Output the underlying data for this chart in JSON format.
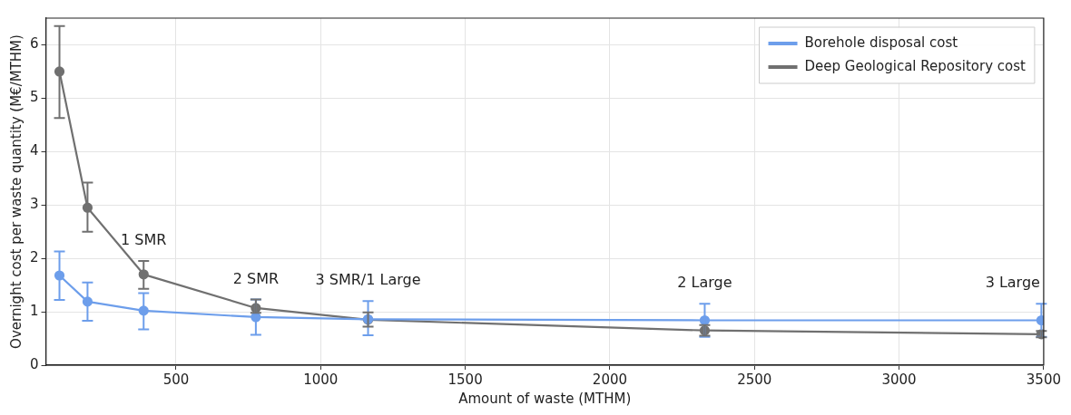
{
  "chart_data": {
    "type": "line",
    "xlabel": "Amount of waste (MTHM)",
    "ylabel": "Overnight cost per waste quantity (M€/MTHM)",
    "x": [
      97,
      194,
      388,
      776,
      1164,
      2328,
      3492
    ],
    "series": [
      {
        "name": "Borehole disposal cost",
        "color": "#6d9eeb",
        "values": [
          1.68,
          1.19,
          1.02,
          0.9,
          0.86,
          0.84,
          0.84
        ],
        "errors": [
          [
            1.22,
            2.13
          ],
          [
            0.83,
            1.55
          ],
          [
            0.67,
            1.35
          ],
          [
            0.57,
            1.23
          ],
          [
            0.56,
            1.2
          ],
          [
            0.53,
            1.15
          ],
          [
            0.53,
            1.15
          ]
        ]
      },
      {
        "name": "Deep Geological Repository cost",
        "color": "#707070",
        "values": [
          5.5,
          2.95,
          1.7,
          1.07,
          0.85,
          0.65,
          0.58
        ],
        "errors": [
          [
            4.63,
            6.35
          ],
          [
            2.5,
            3.42
          ],
          [
            1.43,
            1.95
          ],
          [
            0.98,
            1.23
          ],
          [
            0.72,
            0.99
          ],
          [
            0.55,
            0.75
          ],
          [
            0.52,
            0.64
          ]
        ]
      }
    ],
    "annotations": [
      {
        "text": "1 SMR",
        "x": 388,
        "y": 1.7
      },
      {
        "text": "2 SMR",
        "x": 776,
        "y": 1.07
      },
      {
        "text": "3 SMR/1 Large",
        "x": 1164,
        "y": 0.86
      },
      {
        "text": "2 Large",
        "x": 2328,
        "y": 0.84
      },
      {
        "text": "3 Large",
        "x": 3492,
        "y": 0.84
      }
    ],
    "xlim": [
      50,
      3500
    ],
    "xticks": [
      500,
      1000,
      1500,
      2000,
      2500,
      3000,
      3500
    ],
    "ylim": [
      0,
      6.5
    ],
    "yticks": [
      0,
      1,
      2,
      3,
      4,
      5,
      6
    ],
    "grid": true,
    "legend": "top right",
    "marker": "circle",
    "line_style": "solid"
  }
}
